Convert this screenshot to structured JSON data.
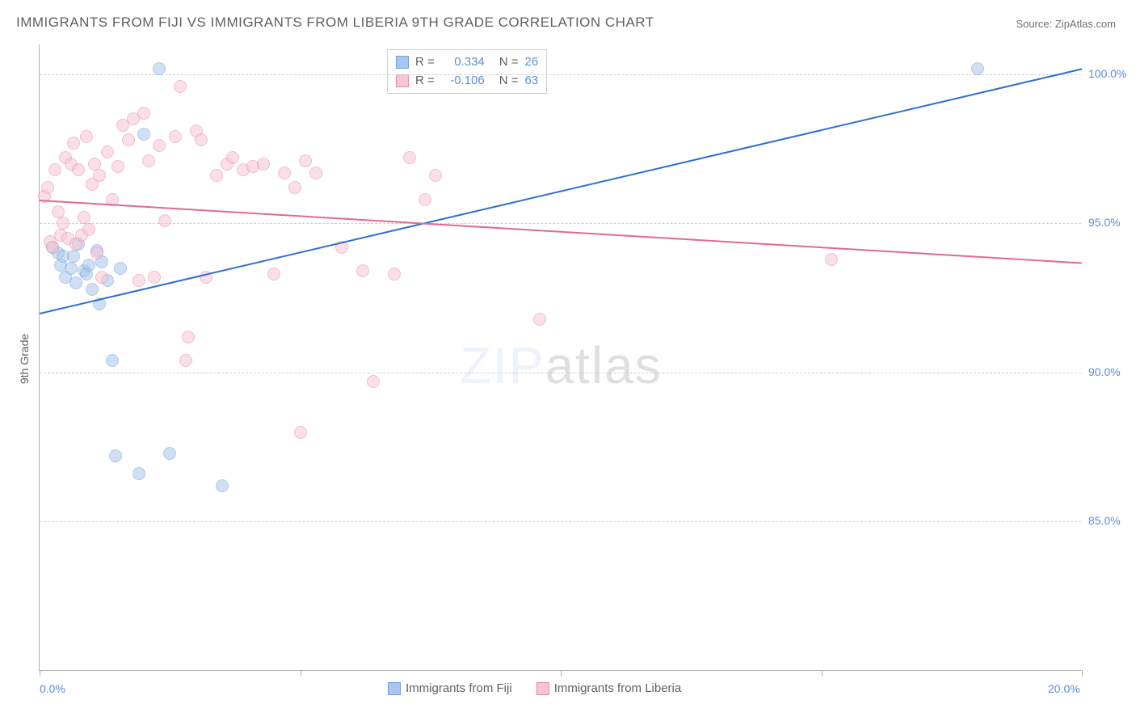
{
  "title": "IMMIGRANTS FROM FIJI VS IMMIGRANTS FROM LIBERIA 9TH GRADE CORRELATION CHART",
  "source": "Source: ZipAtlas.com",
  "chart": {
    "type": "scatter",
    "background_color": "#ffffff",
    "grid_color": "#d0d0d0",
    "axis_color": "#b0b0b0",
    "xlabel": "",
    "ylabel": "9th Grade",
    "label_fontsize": 14,
    "label_color": "#606060",
    "tick_color": "#5b8fd6",
    "xlim": [
      0,
      20
    ],
    "ylim": [
      80,
      101
    ],
    "xticks": [
      0,
      5,
      10,
      15,
      20
    ],
    "xtick_labels": [
      "0.0%",
      "",
      "",
      "",
      "20.0%"
    ],
    "yticks": [
      85,
      90,
      95,
      100
    ],
    "ytick_labels": [
      "85.0%",
      "90.0%",
      "95.0%",
      "100.0%"
    ],
    "marker_radius": 8,
    "marker_opacity": 0.55,
    "series": [
      {
        "name": "Immigrants from Fiji",
        "color": "#a9c7ec",
        "stroke": "#6fa0d8",
        "R": "0.334",
        "N": "26",
        "trend": {
          "x1": 0,
          "y1": 92.0,
          "x2": 20,
          "y2": 100.2,
          "color": "#2f6fd0",
          "width": 2
        },
        "points": [
          [
            0.25,
            94.2
          ],
          [
            0.35,
            94.0
          ],
          [
            0.4,
            93.6
          ],
          [
            0.45,
            93.9
          ],
          [
            0.5,
            93.2
          ],
          [
            0.6,
            93.5
          ],
          [
            0.65,
            93.9
          ],
          [
            0.7,
            93.0
          ],
          [
            0.75,
            94.3
          ],
          [
            0.85,
            93.4
          ],
          [
            0.9,
            93.3
          ],
          [
            0.95,
            93.6
          ],
          [
            1.0,
            92.8
          ],
          [
            1.1,
            94.1
          ],
          [
            1.15,
            92.3
          ],
          [
            1.2,
            93.7
          ],
          [
            1.3,
            93.1
          ],
          [
            1.4,
            90.4
          ],
          [
            1.45,
            87.2
          ],
          [
            1.55,
            93.5
          ],
          [
            1.9,
            86.6
          ],
          [
            2.3,
            100.2
          ],
          [
            2.0,
            98.0
          ],
          [
            2.5,
            87.3
          ],
          [
            3.5,
            86.2
          ],
          [
            18.0,
            100.2
          ]
        ]
      },
      {
        "name": "Immigrants from Liberia",
        "color": "#f7c6d3",
        "stroke": "#e889a6",
        "R": "-0.106",
        "N": "63",
        "trend": {
          "x1": 0,
          "y1": 95.8,
          "x2": 20,
          "y2": 93.7,
          "color": "#e06a8f",
          "width": 2
        },
        "points": [
          [
            0.1,
            95.9
          ],
          [
            0.15,
            96.2
          ],
          [
            0.2,
            94.4
          ],
          [
            0.25,
            94.2
          ],
          [
            0.3,
            96.8
          ],
          [
            0.35,
            95.4
          ],
          [
            0.4,
            94.6
          ],
          [
            0.45,
            95.0
          ],
          [
            0.5,
            97.2
          ],
          [
            0.55,
            94.5
          ],
          [
            0.6,
            97.0
          ],
          [
            0.65,
            97.7
          ],
          [
            0.7,
            94.3
          ],
          [
            0.75,
            96.8
          ],
          [
            0.8,
            94.6
          ],
          [
            0.85,
            95.2
          ],
          [
            0.9,
            97.9
          ],
          [
            0.95,
            94.8
          ],
          [
            1.0,
            96.3
          ],
          [
            1.05,
            97.0
          ],
          [
            1.1,
            94.0
          ],
          [
            1.15,
            96.6
          ],
          [
            1.2,
            93.2
          ],
          [
            1.3,
            97.4
          ],
          [
            1.4,
            95.8
          ],
          [
            1.5,
            96.9
          ],
          [
            1.6,
            98.3
          ],
          [
            1.7,
            97.8
          ],
          [
            1.8,
            98.5
          ],
          [
            1.9,
            93.1
          ],
          [
            2.0,
            98.7
          ],
          [
            2.1,
            97.1
          ],
          [
            2.2,
            93.2
          ],
          [
            2.3,
            97.6
          ],
          [
            2.4,
            95.1
          ],
          [
            2.6,
            97.9
          ],
          [
            2.7,
            99.6
          ],
          [
            2.8,
            90.4
          ],
          [
            2.85,
            91.2
          ],
          [
            3.0,
            98.1
          ],
          [
            3.1,
            97.8
          ],
          [
            3.2,
            93.2
          ],
          [
            3.4,
            96.6
          ],
          [
            3.6,
            97.0
          ],
          [
            3.7,
            97.2
          ],
          [
            3.9,
            96.8
          ],
          [
            4.1,
            96.9
          ],
          [
            4.3,
            97.0
          ],
          [
            4.5,
            93.3
          ],
          [
            4.7,
            96.7
          ],
          [
            4.9,
            96.2
          ],
          [
            5.0,
            88.0
          ],
          [
            5.1,
            97.1
          ],
          [
            5.3,
            96.7
          ],
          [
            5.8,
            94.2
          ],
          [
            6.2,
            93.4
          ],
          [
            6.4,
            89.7
          ],
          [
            6.8,
            93.3
          ],
          [
            7.1,
            97.2
          ],
          [
            7.4,
            95.8
          ],
          [
            7.6,
            96.6
          ],
          [
            9.6,
            91.8
          ],
          [
            15.2,
            93.8
          ]
        ]
      }
    ],
    "stats_box": {
      "R_label": "R =",
      "N_label": "N =",
      "text_color": "#606060",
      "value_color": "#5b8fd6"
    },
    "legend": {
      "fiji": "Immigrants from Fiji",
      "liberia": "Immigrants from Liberia"
    },
    "watermark": {
      "part1": "ZIP",
      "part2": "atlas"
    }
  }
}
